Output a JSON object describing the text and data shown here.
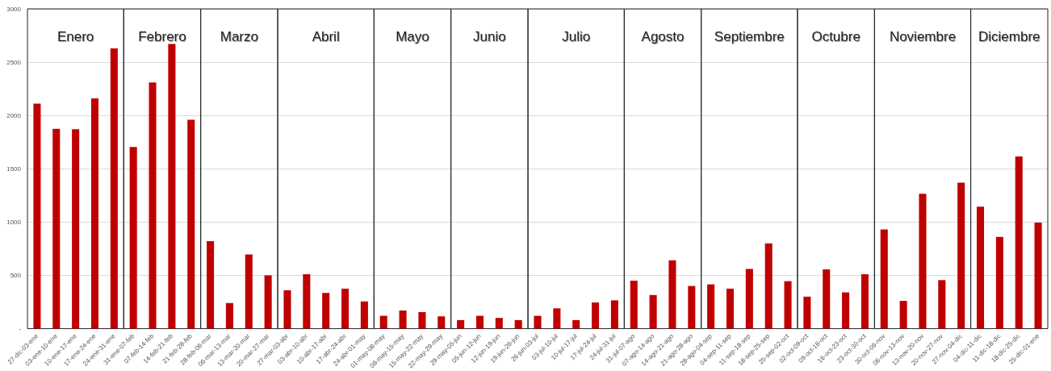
{
  "chart_data": {
    "type": "bar",
    "categories": [
      "27-dic-03-ene",
      "03-ene-10-ene",
      "10-ene-17-ene",
      "17-ene-24-ene",
      "24-ene-31-ene",
      "31-ene-07-feb",
      "07-feb-14-feb",
      "14-feb-21-feb",
      "21-feb-28-feb",
      "28-feb-06-mar",
      "06-mar-13-mar",
      "13-mar-20-mar",
      "20-mar-27-mar",
      "27-mar-03-abr",
      "03-abr-10-abr",
      "10-abr-17-abr",
      "17-abr-24-abr",
      "24-abr-01-may",
      "01-may-08-may",
      "08-may-15-may",
      "15-may-22-may",
      "22-may-29-may",
      "29-may-05-jun",
      "05-jun-12-jun",
      "12-jun-19-jun",
      "19-jun-26-jun",
      "26-jun-03-jul",
      "03-jul-10-jul",
      "10-jul-17-jul",
      "17-jul-24-jul",
      "24-jul-31-jul",
      "31-jul-07-ago",
      "07-ago-14-ago",
      "14-ago-21-ago",
      "21-ago-28-ago",
      "28-ago-04-sep",
      "04-sep-11-sep",
      "11-sep-18-sep",
      "18-sep-25-sep",
      "25-sep-02-oct",
      "02-oct-09-oct",
      "09-oct-16-oct",
      "16-oct-23-oct",
      "23-oct-30-oct",
      "30-oct-06-nov",
      "06-nov-13-nov",
      "13-nov-20-nov",
      "20-nov-27-nov",
      "27-nov-04-dic",
      "04-dic-11-dic",
      "11-dic-18-dic",
      "18-dic-25-dic",
      "25-dic-01-ene"
    ],
    "values": [
      2110,
      1875,
      1870,
      2160,
      2630,
      1705,
      2310,
      2670,
      1960,
      820,
      240,
      695,
      500,
      360,
      510,
      335,
      375,
      255,
      120,
      170,
      155,
      115,
      80,
      120,
      100,
      80,
      120,
      190,
      80,
      245,
      265,
      450,
      315,
      640,
      400,
      415,
      375,
      560,
      800,
      445,
      300,
      555,
      340,
      510,
      930,
      260,
      1265,
      455,
      1370,
      1145,
      860,
      1615,
      995
    ],
    "color": "#c00000",
    "ylim": [
      0,
      3000
    ],
    "yticks": [
      {
        "value": 0,
        "label": "-"
      },
      500,
      1000,
      1500,
      2000,
      2500,
      3000
    ],
    "grid": "y",
    "bands": [
      {
        "axis": "x",
        "from": "27-dic-03-ene",
        "to": "24-ene-31-ene",
        "label": "Enero"
      },
      {
        "axis": "x",
        "from": "31-ene-07-feb",
        "to": "21-feb-28-feb",
        "label": "Febrero"
      },
      {
        "axis": "x",
        "from": "28-feb-06-mar",
        "to": "20-mar-27-mar",
        "label": "Marzo"
      },
      {
        "axis": "x",
        "from": "27-mar-03-abr",
        "to": "24-abr-01-may",
        "label": "Abril"
      },
      {
        "axis": "x",
        "from": "01-may-08-may",
        "to": "22-may-29-may",
        "label": "Mayo"
      },
      {
        "axis": "x",
        "from": "29-may-05-jun",
        "to": "19-jun-26-jun",
        "label": "Junio"
      },
      {
        "axis": "x",
        "from": "26-jun-03-jul",
        "to": "24-jul-31-jul",
        "label": "Julio"
      },
      {
        "axis": "x",
        "from": "31-jul-07-ago",
        "to": "21-ago-28-ago",
        "label": "Agosto"
      },
      {
        "axis": "x",
        "from": "28-ago-04-sep",
        "to": "25-sep-02-oct",
        "label": "Septiembre"
      },
      {
        "axis": "x",
        "from": "02-oct-09-oct",
        "to": "23-oct-30-oct",
        "label": "Octubre"
      },
      {
        "axis": "x",
        "from": "30-oct-06-nov",
        "to": "27-nov-04-dic",
        "label": "Noviembre"
      },
      {
        "axis": "x",
        "from": "04-dic-11-dic",
        "to": "25-dic-01-ene",
        "label": "Diciembre"
      }
    ]
  }
}
